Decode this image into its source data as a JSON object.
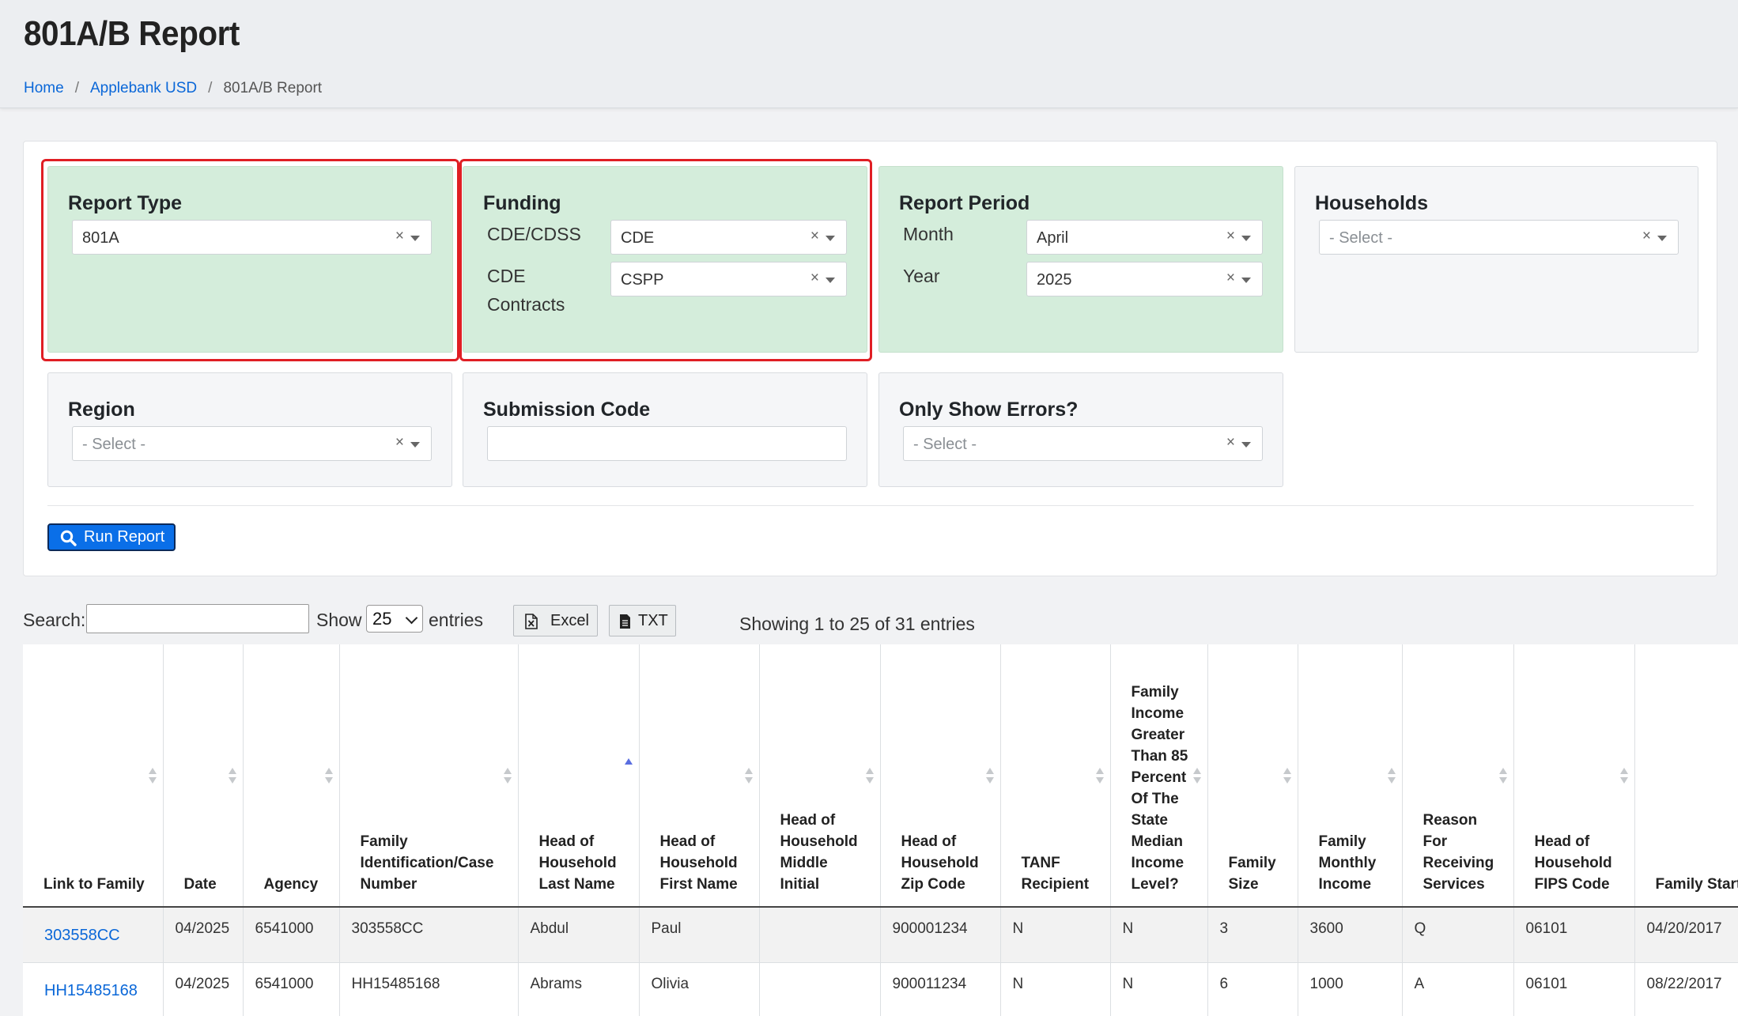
{
  "header": {
    "title": "801A/B Report",
    "breadcrumb": {
      "home": "Home",
      "district": "Applebank USD",
      "current": "801A/B Report"
    }
  },
  "filters": {
    "report_type": {
      "title": "Report Type",
      "value": "801A"
    },
    "funding": {
      "title": "Funding",
      "cde_cdss_label": "CDE/CDSS",
      "cde_cdss_value": "CDE",
      "contracts_label_1": "CDE",
      "contracts_label_2": "Contracts",
      "contracts_value": "CSPP"
    },
    "report_period": {
      "title": "Report Period",
      "month_label": "Month",
      "month_value": "April",
      "year_label": "Year",
      "year_value": "2025"
    },
    "households": {
      "title": "Households",
      "placeholder": "- Select -"
    },
    "region": {
      "title": "Region",
      "placeholder": "- Select -"
    },
    "submission_code": {
      "title": "Submission Code",
      "value": ""
    },
    "only_show_errors": {
      "title": "Only Show Errors?",
      "placeholder": "- Select -"
    },
    "clear_symbol": "×",
    "run_button": "Run Report"
  },
  "table_tools": {
    "search_label": "Search:",
    "show_label": "Show",
    "page_length": "25",
    "entries_label": "entries",
    "excel_label": "Excel",
    "txt_label": "TXT",
    "info": "Showing 1 to 25 of 31 entries"
  },
  "table": {
    "columns": [
      "Link to Family",
      "Date",
      "Agency",
      "Family Identification/Case Number",
      "Head of Household Last Name",
      "Head of Household First Name",
      "Head of Household Middle Initial",
      "Head of Household Zip Code",
      "TANF Recipient",
      "Family Income Greater Than 85 Percent Of The State Median Income Level?",
      "Family Size",
      "Family Monthly Income",
      "Reason For Receiving Services",
      "Head of Household FIPS Code",
      "Family Start Date"
    ],
    "rows": [
      [
        "303558CC",
        "04/2025",
        "6541000",
        "303558CC",
        "Abdul",
        "Paul",
        "",
        "900001234",
        "N",
        "N",
        "3",
        "3600",
        "Q",
        "06101",
        "04/20/2017"
      ],
      [
        "HH15485168",
        "04/2025",
        "6541000",
        "HH15485168",
        "Abrams",
        "Olivia",
        "",
        "900011234",
        "N",
        "N",
        "6",
        "1000",
        "A",
        "06101",
        "08/22/2017"
      ]
    ]
  }
}
